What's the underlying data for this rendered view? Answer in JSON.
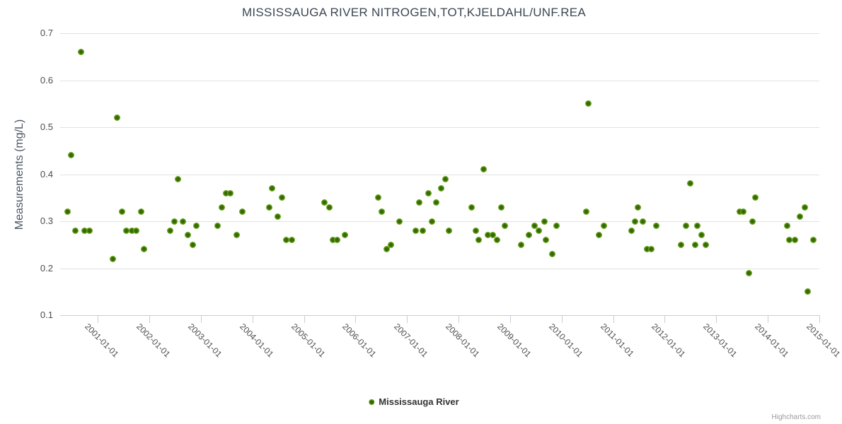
{
  "chart": {
    "title": "MISSISSAUGA RIVER NITROGEN,TOT,KJELDAHL/UNF.REA",
    "credits_label": "Highcharts.com"
  },
  "legend": {
    "items": [
      {
        "label": "Mississauga River",
        "marker_fill": "#316a02",
        "marker_edge": "#7fb428"
      }
    ]
  },
  "colors": {
    "series_green": "#67a10c",
    "marker_core": "#316a02",
    "marker_edge": "#7fb428",
    "gridline": "#e2e2e2",
    "axis_line": "#c0d0e0",
    "tick_label": "#4d4d4d"
  },
  "chart_data": {
    "type": "scatter",
    "title": "MISSISSAUGA RIVER NITROGEN,TOT,KJELDAHL/UNF.REA",
    "xlabel": "",
    "ylabel": "Measurements (mg/L)",
    "ylim": [
      0.1,
      0.7
    ],
    "y_ticks": [
      0.1,
      0.2,
      0.3,
      0.4,
      0.5,
      0.6,
      0.7
    ],
    "x_tick_labels": [
      "2001-01-01",
      "2002-01-01",
      "2003-01-01",
      "2004-01-01",
      "2005-01-01",
      "2006-01-01",
      "2007-01-01",
      "2008-01-01",
      "2009-01-01",
      "2010-01-01",
      "2011-01-01",
      "2012-01-01",
      "2013-01-01",
      "2014-01-01",
      "2015-01-01"
    ],
    "x_tick_years": [
      2001,
      2002,
      2003,
      2004,
      2005,
      2006,
      2007,
      2008,
      2009,
      2010,
      2011,
      2012,
      2013,
      2014,
      2015
    ],
    "xlim_years": [
      2000.27,
      2015.0
    ],
    "grid": true,
    "legend_position": "bottom",
    "series": [
      {
        "name": "Mississauga River",
        "color": "#67a10c",
        "points": [
          [
            2000.42,
            0.32
          ],
          [
            2000.48,
            0.44
          ],
          [
            2000.57,
            0.28
          ],
          [
            2000.67,
            0.66
          ],
          [
            2000.74,
            0.28
          ],
          [
            2000.84,
            0.28
          ],
          [
            2001.29,
            0.22
          ],
          [
            2001.38,
            0.52
          ],
          [
            2001.47,
            0.32
          ],
          [
            2001.55,
            0.28
          ],
          [
            2001.66,
            0.28
          ],
          [
            2001.74,
            0.28
          ],
          [
            2001.84,
            0.32
          ],
          [
            2001.9,
            0.24
          ],
          [
            2002.4,
            0.28
          ],
          [
            2002.49,
            0.3
          ],
          [
            2002.56,
            0.39
          ],
          [
            2002.65,
            0.3
          ],
          [
            2002.75,
            0.27
          ],
          [
            2002.84,
            0.25
          ],
          [
            2002.91,
            0.29
          ],
          [
            2003.33,
            0.29
          ],
          [
            2003.41,
            0.33
          ],
          [
            2003.49,
            0.36
          ],
          [
            2003.57,
            0.36
          ],
          [
            2003.7,
            0.27
          ],
          [
            2003.81,
            0.32
          ],
          [
            2004.33,
            0.33
          ],
          [
            2004.38,
            0.37
          ],
          [
            2004.49,
            0.31
          ],
          [
            2004.57,
            0.35
          ],
          [
            2004.66,
            0.26
          ],
          [
            2004.76,
            0.26
          ],
          [
            2005.4,
            0.34
          ],
          [
            2005.49,
            0.33
          ],
          [
            2005.56,
            0.26
          ],
          [
            2005.65,
            0.26
          ],
          [
            2005.79,
            0.27
          ],
          [
            2006.44,
            0.35
          ],
          [
            2006.51,
            0.32
          ],
          [
            2006.61,
            0.24
          ],
          [
            2006.69,
            0.25
          ],
          [
            2006.85,
            0.3
          ],
          [
            2007.17,
            0.28
          ],
          [
            2007.24,
            0.34
          ],
          [
            2007.31,
            0.28
          ],
          [
            2007.42,
            0.36
          ],
          [
            2007.48,
            0.3
          ],
          [
            2007.57,
            0.34
          ],
          [
            2007.66,
            0.37
          ],
          [
            2007.74,
            0.39
          ],
          [
            2007.82,
            0.28
          ],
          [
            2008.25,
            0.33
          ],
          [
            2008.33,
            0.28
          ],
          [
            2008.39,
            0.26
          ],
          [
            2008.49,
            0.41
          ],
          [
            2008.57,
            0.27
          ],
          [
            2008.67,
            0.27
          ],
          [
            2008.75,
            0.26
          ],
          [
            2008.83,
            0.33
          ],
          [
            2008.9,
            0.29
          ],
          [
            2009.22,
            0.25
          ],
          [
            2009.37,
            0.27
          ],
          [
            2009.48,
            0.29
          ],
          [
            2009.56,
            0.28
          ],
          [
            2009.66,
            0.3
          ],
          [
            2009.7,
            0.26
          ],
          [
            2009.82,
            0.23
          ],
          [
            2009.9,
            0.29
          ],
          [
            2010.48,
            0.32
          ],
          [
            2010.52,
            0.55
          ],
          [
            2010.72,
            0.27
          ],
          [
            2010.82,
            0.29
          ],
          [
            2011.35,
            0.28
          ],
          [
            2011.42,
            0.3
          ],
          [
            2011.48,
            0.33
          ],
          [
            2011.57,
            0.3
          ],
          [
            2011.66,
            0.24
          ],
          [
            2011.74,
            0.24
          ],
          [
            2011.83,
            0.29
          ],
          [
            2012.32,
            0.25
          ],
          [
            2012.41,
            0.29
          ],
          [
            2012.5,
            0.38
          ],
          [
            2012.59,
            0.25
          ],
          [
            2012.63,
            0.29
          ],
          [
            2012.72,
            0.27
          ],
          [
            2012.8,
            0.25
          ],
          [
            2013.46,
            0.32
          ],
          [
            2013.53,
            0.32
          ],
          [
            2013.64,
            0.19
          ],
          [
            2013.7,
            0.3
          ],
          [
            2013.76,
            0.35
          ],
          [
            2014.38,
            0.29
          ],
          [
            2014.42,
            0.26
          ],
          [
            2014.52,
            0.26
          ],
          [
            2014.62,
            0.31
          ],
          [
            2014.72,
            0.33
          ],
          [
            2014.77,
            0.15
          ],
          [
            2014.88,
            0.26
          ]
        ]
      }
    ]
  }
}
